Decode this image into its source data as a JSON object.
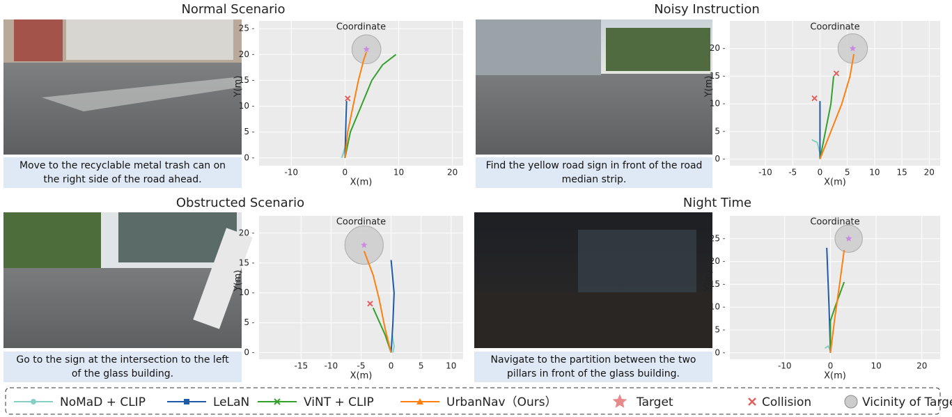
{
  "panels": [
    {
      "title": "Normal Scenario",
      "caption": "Move to the recyclable metal trash can on the right side of the road ahead."
    },
    {
      "title": "Noisy Instruction",
      "caption": "Find the yellow road sign in front of the road median strip."
    },
    {
      "title": "Obstructed Scenario",
      "caption": "Go to the sign at the intersection to the left of the glass building."
    },
    {
      "title": "Night Time",
      "caption": "Navigate to the partition between the two pillars in front of the glass building."
    }
  ],
  "chart_data": [
    {
      "type": "line",
      "title": "Coordinate",
      "xlabel": "X(m)",
      "ylabel": "Y(m)",
      "grid": true,
      "xlim": [
        -16,
        22
      ],
      "ylim": [
        -1.5,
        26.5
      ],
      "xticks": [
        -10,
        0,
        10,
        20
      ],
      "yticks": [
        0,
        5,
        10,
        15,
        20,
        25
      ],
      "series": [
        {
          "name": "NoMaD + CLIP",
          "color": "#86cfc3",
          "x": [
            -0.6,
            -0.3,
            0,
            -0.4
          ],
          "y": [
            0,
            1,
            2,
            0.5
          ]
        },
        {
          "name": "LeLaN",
          "color": "#1f5aa6",
          "x": [
            0,
            0.1,
            0.2,
            0.3
          ],
          "y": [
            0,
            4,
            8,
            11
          ]
        },
        {
          "name": "ViNT + CLIP",
          "color": "#33a02c",
          "x": [
            0,
            1,
            3,
            5,
            7,
            9.5
          ],
          "y": [
            0,
            5,
            10,
            15,
            18,
            20
          ]
        },
        {
          "name": "UrbanNav（Ours）",
          "color": "#ff7f0e",
          "x": [
            0,
            0.5,
            1.5,
            2.5,
            3.5,
            4
          ],
          "y": [
            0,
            5,
            10,
            15,
            19,
            20.5
          ]
        }
      ],
      "target": {
        "name": "Target",
        "x": 4,
        "y": 21,
        "color": "#e88a8a"
      },
      "collisions": {
        "name": "Collision",
        "x": [
          0.5
        ],
        "y": [
          11.5
        ],
        "color": "#e06060"
      },
      "vicinity": {
        "name": "Vicinity of Target",
        "radius": 2.7,
        "color": "#cccccc"
      }
    },
    {
      "type": "line",
      "title": "Coordinate",
      "xlabel": "X(m)",
      "ylabel": "Y(m)",
      "grid": true,
      "xlim": [
        -16.5,
        22
      ],
      "ylim": [
        -1.2,
        25
      ],
      "xticks": [
        -10,
        -5,
        0,
        5,
        10,
        15,
        20
      ],
      "yticks": [
        0,
        5,
        10,
        15,
        20
      ],
      "series": [
        {
          "color": "#86cfc3",
          "x": [
            -1.5,
            -0.5,
            0,
            0
          ],
          "y": [
            3.5,
            3,
            1,
            0
          ]
        },
        {
          "color": "#1f5aa6",
          "x": [
            0,
            0,
            0,
            0
          ],
          "y": [
            0,
            4,
            8,
            10.5
          ]
        },
        {
          "color": "#33a02c",
          "x": [
            0,
            1,
            2,
            2.5
          ],
          "y": [
            0,
            5,
            10,
            15
          ]
        },
        {
          "color": "#ff7f0e",
          "x": [
            0,
            2,
            4,
            5.5,
            6.2
          ],
          "y": [
            0,
            5,
            10,
            15,
            19
          ]
        }
      ],
      "target": {
        "x": 6,
        "y": 20,
        "color": "#e88a8a"
      },
      "collisions": {
        "x": [
          -1,
          3
        ],
        "y": [
          11,
          15.5
        ],
        "color": "#e06060"
      },
      "vicinity": {
        "radius": 2.7,
        "color": "#cccccc"
      }
    },
    {
      "type": "line",
      "title": "Coordinate",
      "xlabel": "X(m)",
      "ylabel": "Y(m)",
      "grid": true,
      "xlim": [
        -22,
        12
      ],
      "ylim": [
        -1.1,
        22.9
      ],
      "xticks": [
        -15,
        -10,
        -5,
        0,
        5,
        10
      ],
      "yticks": [
        0,
        5,
        10,
        15,
        20
      ],
      "series": [
        {
          "color": "#86cfc3",
          "x": [
            0.3,
            0.5,
            0.2
          ],
          "y": [
            0,
            1,
            3
          ]
        },
        {
          "color": "#1f5aa6",
          "x": [
            0,
            0.3,
            0.5,
            0
          ],
          "y": [
            0,
            5,
            10,
            15.5
          ]
        },
        {
          "color": "#33a02c",
          "x": [
            0,
            -1,
            -3
          ],
          "y": [
            0,
            3,
            7.5
          ]
        },
        {
          "color": "#ff7f0e",
          "x": [
            0,
            -1,
            -2,
            -3,
            -4.5
          ],
          "y": [
            0,
            4,
            9,
            13,
            17
          ]
        }
      ],
      "target": {
        "x": -4.5,
        "y": 18,
        "color": "#e88a8a"
      },
      "collisions": {
        "x": [
          -3.5
        ],
        "y": [
          8.2
        ],
        "color": "#e06060"
      },
      "vicinity": {
        "radius": 3.2,
        "color": "#cccccc"
      }
    },
    {
      "type": "line",
      "title": "Coordinate",
      "xlabel": "X(m)",
      "ylabel": "Y(m)",
      "grid": true,
      "xlim": [
        -22,
        24
      ],
      "ylim": [
        -1.4,
        30
      ],
      "xticks": [
        -10,
        0,
        10,
        20
      ],
      "yticks": [
        0,
        5,
        10,
        15,
        20,
        25
      ],
      "series": [
        {
          "color": "#86cfc3",
          "x": [
            -1.2,
            -0.5,
            0
          ],
          "y": [
            1,
            1.5,
            0.5
          ]
        },
        {
          "color": "#1f5aa6",
          "x": [
            0,
            -0.3,
            -0.8
          ],
          "y": [
            0,
            10,
            23
          ]
        },
        {
          "color": "#33a02c",
          "x": [
            0,
            0,
            1,
            3
          ],
          "y": [
            0,
            7,
            10,
            15.5
          ]
        },
        {
          "color": "#ff7f0e",
          "x": [
            0,
            1,
            2,
            3
          ],
          "y": [
            0,
            8,
            15,
            22.5
          ]
        }
      ],
      "target": {
        "x": 4,
        "y": 25,
        "color": "#e88a8a"
      },
      "collisions": {
        "x": [],
        "y": [],
        "color": "#e06060"
      },
      "vicinity": {
        "radius": 3,
        "color": "#cccccc"
      }
    }
  ]
}
